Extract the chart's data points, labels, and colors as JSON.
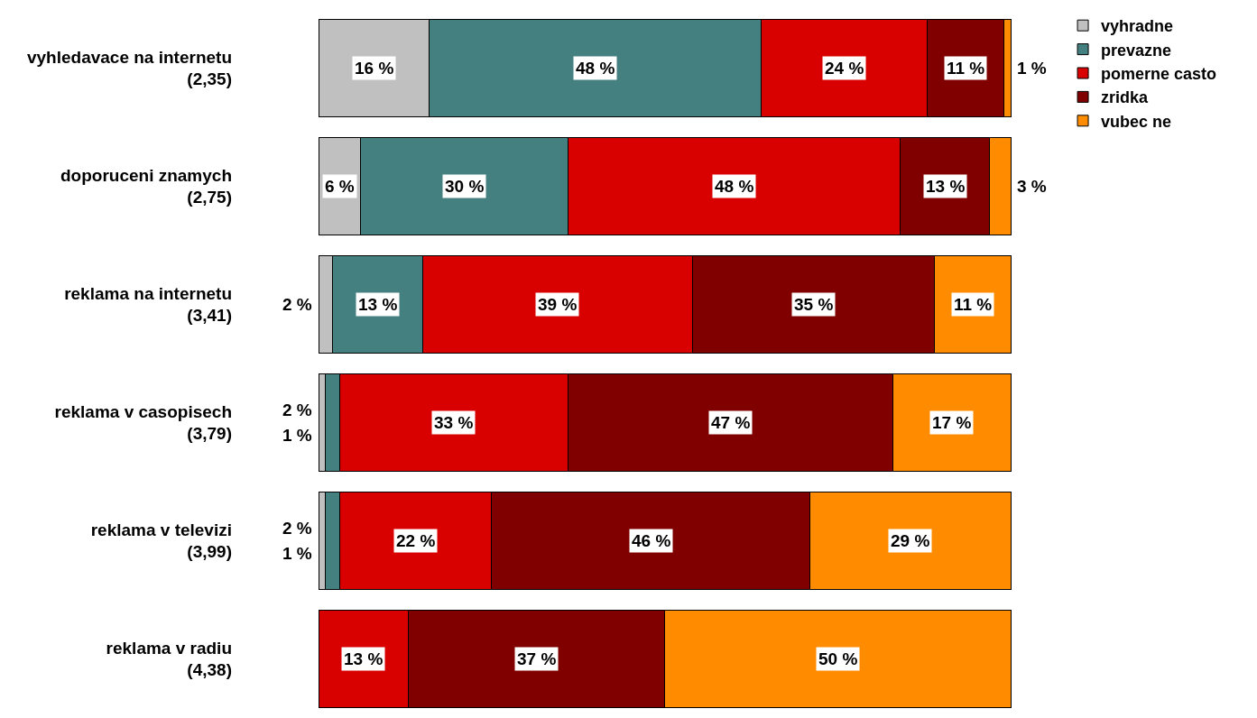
{
  "chart_data": {
    "type": "bar",
    "orientation": "horizontal",
    "stacked": true,
    "legend": "top right",
    "categories": [
      "vyhledavace na internetu\n(2,35)",
      "doporuceni znamych\n(2,75)",
      "reklama na internetu\n(3,41)",
      "reklama v casopisech\n(3,79)",
      "reklama v televizi\n(3,99)",
      "reklama v radiu\n(4,38)"
    ],
    "series": [
      {
        "name": "vyhradne",
        "color": "#c0c0c0",
        "values": [
          16,
          6,
          2,
          1,
          1,
          0
        ],
        "value_labels": [
          "16 %",
          "6 %",
          "2 %",
          "1 %",
          "1 %",
          null
        ]
      },
      {
        "name": "prevazne",
        "color": "#458080",
        "values": [
          48,
          30,
          13,
          2,
          2,
          0
        ],
        "value_labels": [
          "48 %",
          "30 %",
          "13 %",
          "2 %",
          "2 %",
          null
        ]
      },
      {
        "name": "pomerne casto",
        "color": "#d90000",
        "values": [
          24,
          48,
          39,
          33,
          22,
          13
        ],
        "value_labels": [
          "24 %",
          "48 %",
          "39 %",
          "33 %",
          "22 %",
          "13 %"
        ]
      },
      {
        "name": "zridka",
        "color": "#800000",
        "values": [
          11,
          13,
          35,
          47,
          46,
          37
        ],
        "value_labels": [
          "11 %",
          "13 %",
          "35 %",
          "47 %",
          "46 %",
          "37 %"
        ]
      },
      {
        "name": "vubec ne",
        "color": "#ff8c00",
        "values": [
          1,
          3,
          11,
          17,
          29,
          50
        ],
        "value_labels": [
          "1 %",
          "3 %",
          "11 %",
          "17 %",
          "29 %",
          "50 %"
        ]
      }
    ]
  }
}
